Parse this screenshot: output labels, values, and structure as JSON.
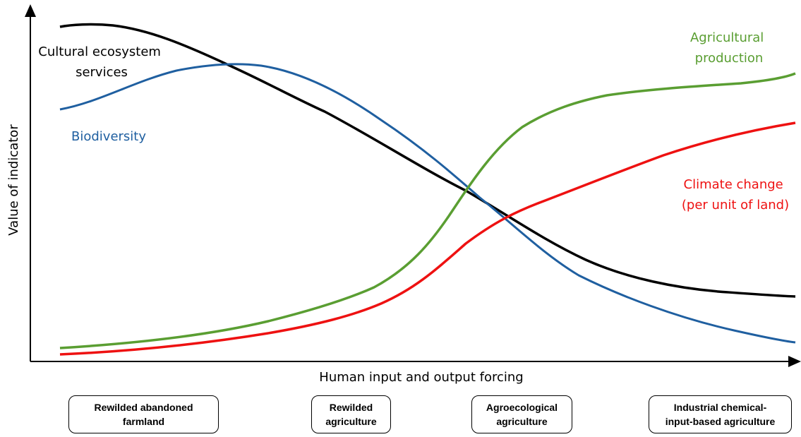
{
  "axes": {
    "x_title": "Human input and output forcing",
    "y_title": "Value of indicator"
  },
  "curves": {
    "cultural": {
      "label_line1": "Cultural ecosystem",
      "label_line2": "services",
      "color": "#000000"
    },
    "biodiversity": {
      "label": "Biodiversity",
      "color": "#1f5fa0"
    },
    "agricultural": {
      "label_line1": "Agricultural",
      "label_line2": "production",
      "color": "#5a9e32"
    },
    "climate": {
      "label_line1": "Climate change",
      "label_line2": "(per unit of land)",
      "color": "#ee1111"
    }
  },
  "stages": [
    {
      "label": "Rewilded abandoned\nfarmland"
    },
    {
      "label": "Rewilded\nagriculture"
    },
    {
      "label": "Agroecological\nagriculture"
    },
    {
      "label": "Industrial chemical-\ninput-based agriculture"
    }
  ]
}
